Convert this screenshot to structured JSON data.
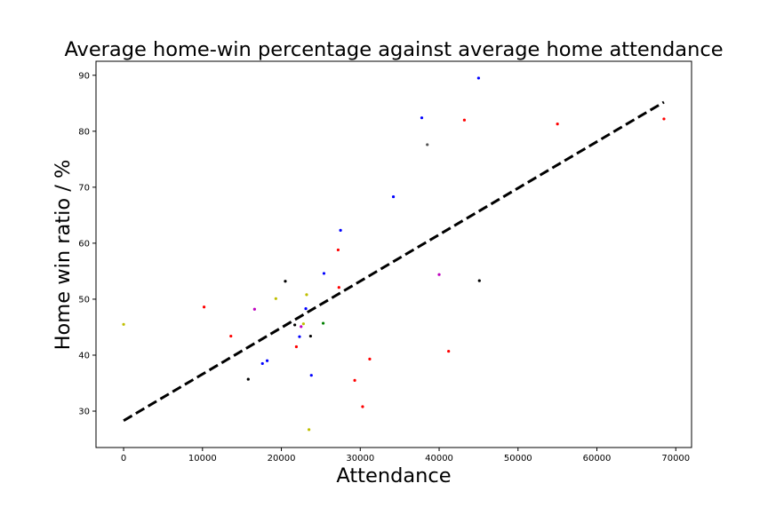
{
  "chart_data": {
    "type": "scatter",
    "title": "Average home-win percentage against average home attendance",
    "xlabel": "Attendance",
    "ylabel": "Home win ratio / %",
    "xlim": [
      -3500,
      72000
    ],
    "ylim": [
      23.5,
      92.5
    ],
    "xticks": [
      0,
      10000,
      20000,
      30000,
      40000,
      50000,
      60000,
      70000
    ],
    "yticks": [
      30,
      40,
      50,
      60,
      70,
      80,
      90
    ],
    "grid": false,
    "points": [
      {
        "x": 0,
        "y": 45.5,
        "color": "#bfbf00"
      },
      {
        "x": 10200,
        "y": 48.6,
        "color": "#ff0000"
      },
      {
        "x": 13600,
        "y": 43.4,
        "color": "#ff0000"
      },
      {
        "x": 15800,
        "y": 35.7,
        "color": "#000000"
      },
      {
        "x": 16600,
        "y": 48.2,
        "color": "#bf00bf"
      },
      {
        "x": 17600,
        "y": 38.5,
        "color": "#0000ff"
      },
      {
        "x": 18200,
        "y": 39.0,
        "color": "#0000ff"
      },
      {
        "x": 19300,
        "y": 50.1,
        "color": "#bfbf00"
      },
      {
        "x": 20500,
        "y": 53.2,
        "color": "#000000"
      },
      {
        "x": 21700,
        "y": 45.4,
        "color": "#000000"
      },
      {
        "x": 21900,
        "y": 41.5,
        "color": "#ff0000"
      },
      {
        "x": 22300,
        "y": 43.3,
        "color": "#0000ff"
      },
      {
        "x": 22500,
        "y": 45.1,
        "color": "#bf00bf"
      },
      {
        "x": 22800,
        "y": 45.6,
        "color": "#bfbf00"
      },
      {
        "x": 23100,
        "y": 48.3,
        "color": "#0000ff"
      },
      {
        "x": 23200,
        "y": 50.8,
        "color": "#bfbf00"
      },
      {
        "x": 23500,
        "y": 26.7,
        "color": "#bfbf00"
      },
      {
        "x": 23700,
        "y": 43.4,
        "color": "#000000"
      },
      {
        "x": 23800,
        "y": 36.4,
        "color": "#0000ff"
      },
      {
        "x": 25300,
        "y": 45.7,
        "color": "#008000"
      },
      {
        "x": 25400,
        "y": 54.6,
        "color": "#0000ff"
      },
      {
        "x": 27200,
        "y": 58.8,
        "color": "#ff0000"
      },
      {
        "x": 27300,
        "y": 52.1,
        "color": "#ff0000"
      },
      {
        "x": 27500,
        "y": 62.3,
        "color": "#0000ff"
      },
      {
        "x": 29300,
        "y": 35.5,
        "color": "#ff0000"
      },
      {
        "x": 30300,
        "y": 30.8,
        "color": "#ff0000"
      },
      {
        "x": 31200,
        "y": 39.3,
        "color": "#ff0000"
      },
      {
        "x": 34200,
        "y": 68.3,
        "color": "#0000ff"
      },
      {
        "x": 37800,
        "y": 82.4,
        "color": "#0000ff"
      },
      {
        "x": 38500,
        "y": 77.6,
        "color": "#555555"
      },
      {
        "x": 40000,
        "y": 54.4,
        "color": "#bf00bf"
      },
      {
        "x": 41200,
        "y": 40.7,
        "color": "#ff0000"
      },
      {
        "x": 43200,
        "y": 82.0,
        "color": "#ff0000"
      },
      {
        "x": 45000,
        "y": 89.5,
        "color": "#0000ff"
      },
      {
        "x": 45100,
        "y": 53.3,
        "color": "#000000"
      },
      {
        "x": 55000,
        "y": 81.3,
        "color": "#ff0000"
      },
      {
        "x": 68500,
        "y": 82.2,
        "color": "#ff0000"
      }
    ],
    "trendline": {
      "x": [
        0,
        68500
      ],
      "y": [
        28.3,
        85.2
      ],
      "color": "#000000",
      "style": "dashed"
    }
  }
}
